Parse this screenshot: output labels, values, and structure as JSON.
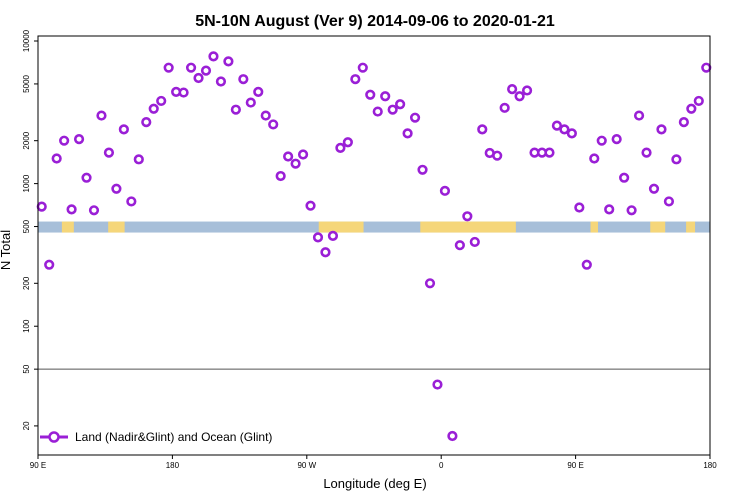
{
  "chart_data": {
    "type": "scatter",
    "title": "5N-10N August (Ver 9)   2014-09-06 to 2020-01-21",
    "xlabel": "Longitude (deg E)",
    "ylabel": "N Total",
    "y_scale": "log",
    "ylim": [
      14,
      10000
    ],
    "xlim": [
      0,
      450
    ],
    "x_ticks": [
      {
        "value": 0,
        "label": "90 E"
      },
      {
        "value": 90,
        "label": "180"
      },
      {
        "value": 180,
        "label": "90 W"
      },
      {
        "value": 270,
        "label": "0"
      },
      {
        "value": 360,
        "label": "90 E"
      },
      {
        "value": 450,
        "label": "180"
      }
    ],
    "y_ticks": [
      {
        "value": 20,
        "label": "20"
      },
      {
        "value": 50,
        "label": "50"
      },
      {
        "value": 100,
        "label": "100"
      },
      {
        "value": 200,
        "label": "200"
      },
      {
        "value": 500,
        "label": "500"
      },
      {
        "value": 1000,
        "label": "1000"
      },
      {
        "value": 2000,
        "label": "2000"
      },
      {
        "value": 5000,
        "label": "5000"
      },
      {
        "value": 10000,
        "label": "10000"
      }
    ],
    "reference_line": 50,
    "band": {
      "center": 500,
      "label": "land/ocean mask strip"
    },
    "colors": {
      "marker": "#9a1fd6",
      "band_ocean": "#a7bfd9",
      "band_land": "#f5d67a",
      "axis": "#000000",
      "ref_line": "#555555"
    },
    "legend": {
      "label": "Land (Nadir&Glint) and Ocean (Glint)",
      "position": "bottom-left"
    },
    "series": [
      {
        "name": "Land (Nadir&Glint) and Ocean (Glint)",
        "x": [
          2.5,
          7.5,
          12.5,
          17.5,
          22.5,
          27.5,
          32.5,
          37.5,
          42.5,
          47.5,
          52.5,
          57.5,
          62.5,
          67.5,
          72.5,
          77.5,
          82.5,
          87.5,
          92.5,
          97.5,
          102.5,
          107.5,
          112.5,
          117.5,
          122.5,
          127.5,
          132.5,
          137.5,
          142.5,
          147.5,
          152.5,
          157.5,
          162.5,
          167.5,
          172.5,
          177.5,
          182.5,
          187.5,
          192.5,
          197.5,
          202.5,
          207.5,
          212.5,
          217.5,
          222.5,
          227.5,
          232.5,
          237.5,
          242.5,
          247.5,
          252.5,
          257.5,
          262.5,
          267.5,
          272.5,
          277.5,
          282.5,
          287.5,
          292.5,
          297.5,
          302.5,
          307.5,
          312.5,
          317.5,
          322.5,
          327.5,
          332.5,
          337.5,
          342.5,
          347.5,
          352.5,
          357.5,
          362.5,
          367.5,
          372.5,
          377.5,
          382.5,
          387.5,
          392.5,
          397.5,
          402.5,
          407.5,
          412.5,
          417.5,
          422.5,
          427.5,
          432.5,
          437.5,
          442.5,
          447.5
        ],
        "y": [
          690,
          270,
          1500,
          2000,
          660,
          2050,
          1100,
          650,
          3000,
          1650,
          920,
          2400,
          750,
          1480,
          2700,
          3350,
          3800,
          6500,
          4400,
          4350,
          6500,
          5500,
          6200,
          7800,
          5200,
          7200,
          3300,
          5400,
          3700,
          4400,
          3000,
          2600,
          1130,
          1550,
          1380,
          1600,
          700,
          420,
          330,
          430,
          1780,
          1950,
          5400,
          6500,
          4200,
          3200,
          4100,
          3300,
          3600,
          2250,
          2900,
          1250,
          200,
          39,
          890,
          17,
          370,
          590,
          390,
          2400,
          1640,
          1570,
          3400,
          4600,
          4100,
          4500,
          1650,
          1650,
          1650,
          2550,
          2400,
          2250,
          680,
          270,
          1500,
          2000,
          660,
          2050,
          1100,
          650,
          3000,
          1650,
          920,
          2400,
          750,
          1480,
          2700,
          3350,
          3800,
          6500
        ]
      }
    ]
  }
}
